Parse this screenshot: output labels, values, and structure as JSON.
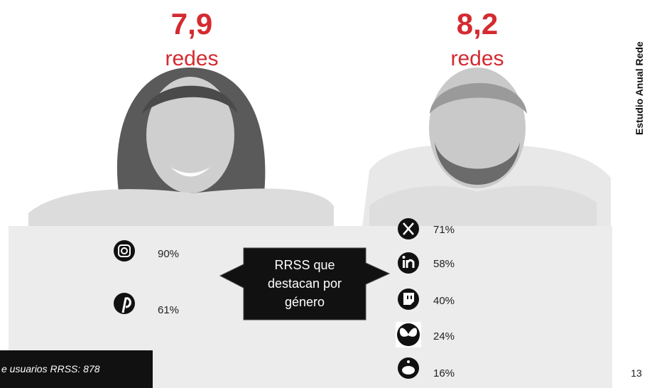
{
  "women": {
    "count": "7,9",
    "unit": "redes",
    "networks": [
      "90%",
      "61%"
    ]
  },
  "men": {
    "count": "8,2",
    "unit": "redes",
    "networks": [
      "71%",
      "58%",
      "40%",
      "24%",
      "16%"
    ]
  },
  "callout": "RRSS que destacan por género",
  "footnote": "e usuarios RRSS: 878",
  "sidebar": "Estudio Anual Rede",
  "page_number": "13"
}
